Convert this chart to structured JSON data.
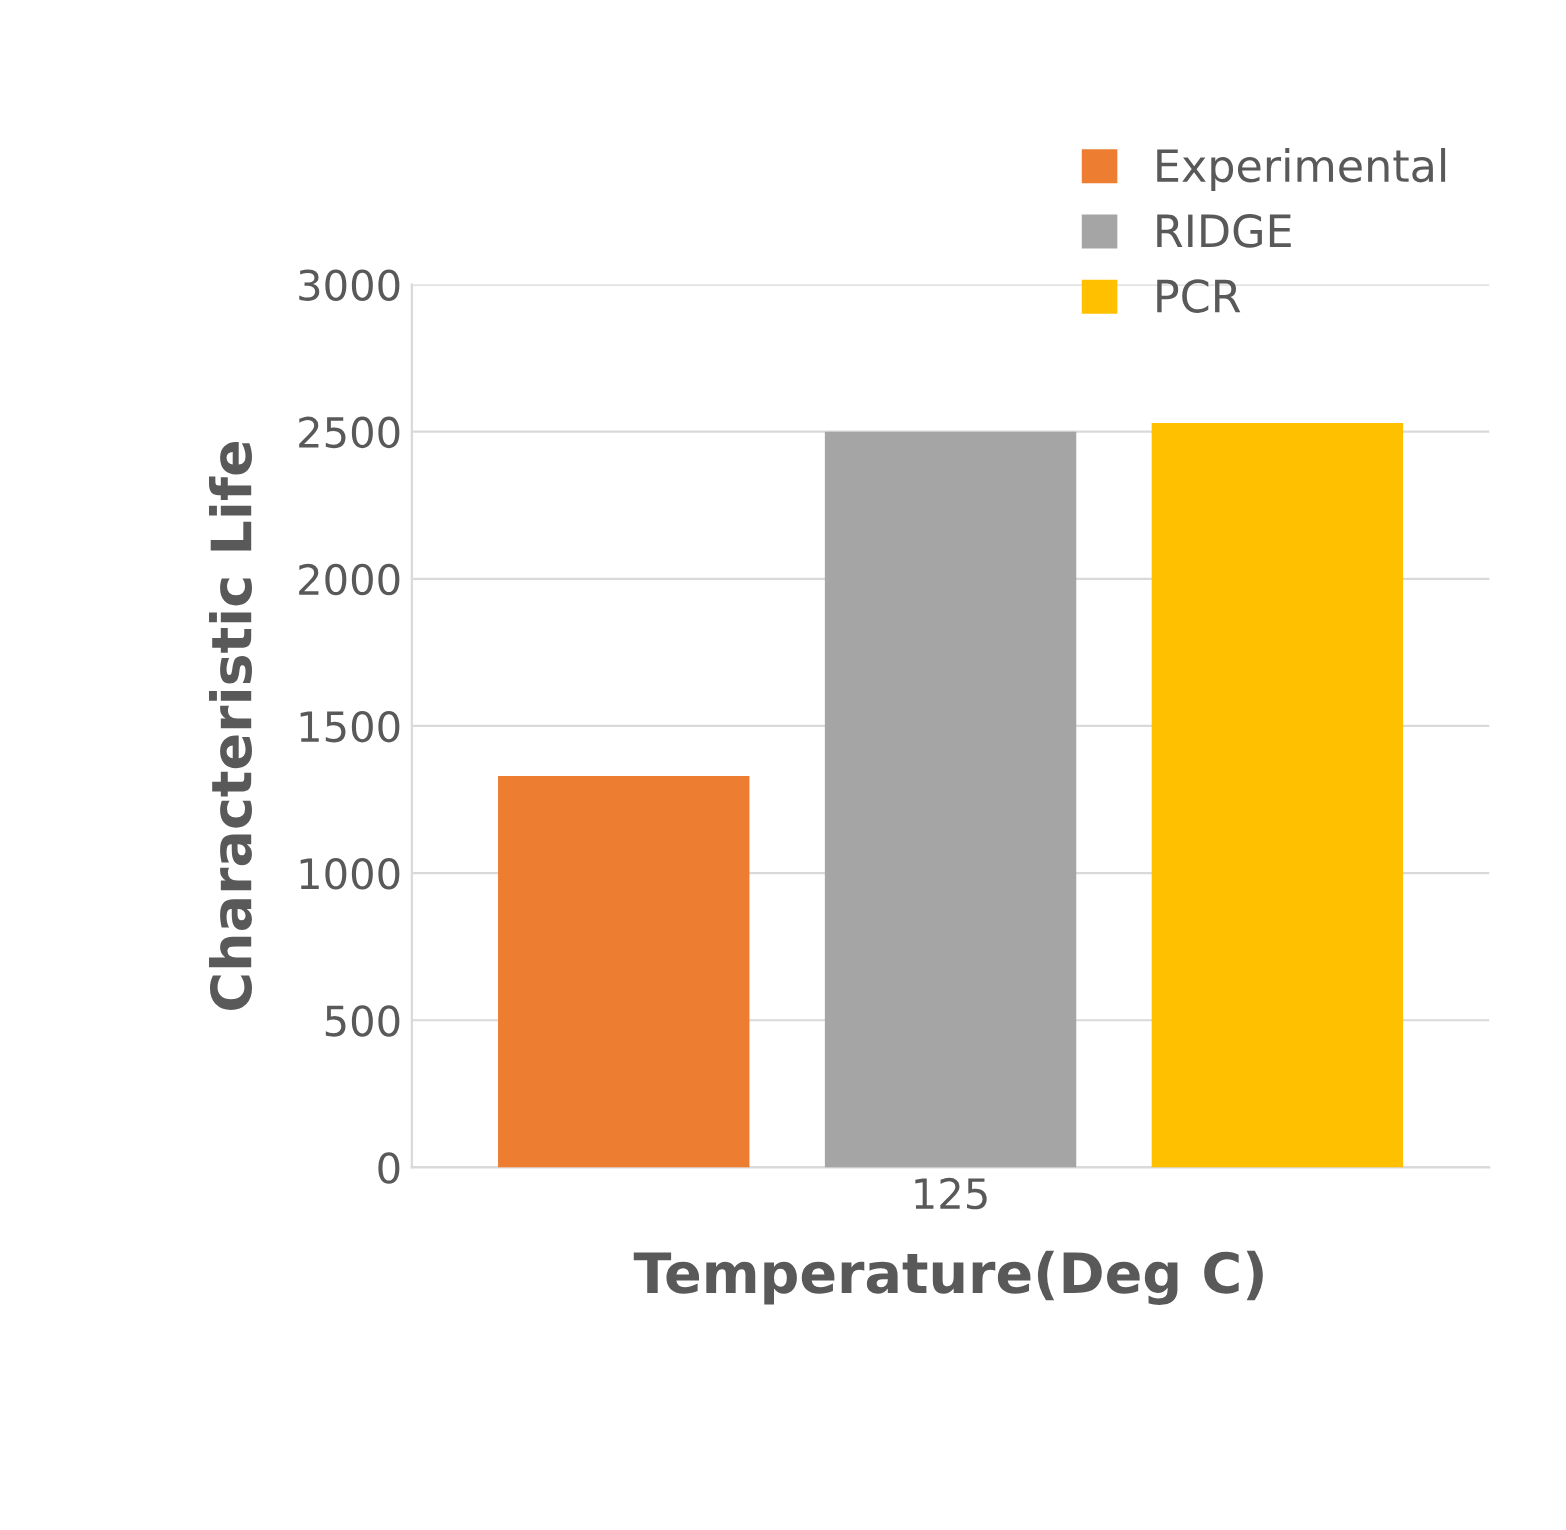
{
  "chart_data": {
    "type": "bar",
    "xlabel": "Temperature(Deg C)",
    "ylabel": "Characteristic Life",
    "categories": [
      "125"
    ],
    "series": [
      {
        "name": "Experimental",
        "color": "#ed7d31",
        "values": [
          1330
        ]
      },
      {
        "name": "RIDGE",
        "color": "#a5a5a5",
        "values": [
          2500
        ]
      },
      {
        "name": "PCR",
        "color": "#ffc000",
        "values": [
          2530
        ]
      }
    ],
    "ylim": [
      0,
      3000
    ],
    "yticks": [
      0,
      500,
      1000,
      1500,
      2000,
      2500,
      3000
    ],
    "grid": "y",
    "legend": "top right"
  }
}
